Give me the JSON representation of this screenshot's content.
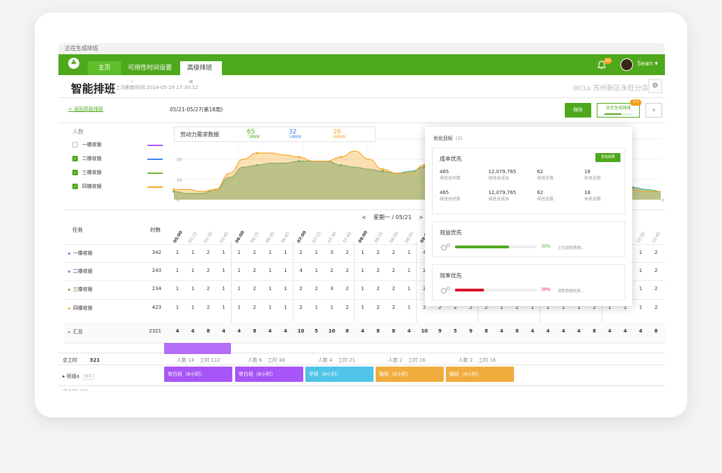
{
  "window": {
    "status_caption": "正在生成排班"
  },
  "nav": {
    "tabs": [
      {
        "label": "主页"
      },
      {
        "label": "可用性时间设置",
        "close": "×"
      },
      {
        "label": "高级排班",
        "close": "×"
      }
    ],
    "notification_count": "99",
    "user_name": "Sean"
  },
  "page": {
    "title": "智能排班",
    "refresh_time": "上次刷新时间:2018-05-29 17:30:12",
    "store_name": "001a 苏州新区永旺分店",
    "back_link": "< 返回高级排班",
    "week_range": "05/21-05/27(第18周)",
    "save_label": "保存",
    "generating_label": "正在生成排班",
    "generating_badge": "1/3"
  },
  "sidebar": {
    "title": "人数",
    "items": [
      {
        "label": "一楼收银",
        "checked": false,
        "color": "#a855f7"
      },
      {
        "label": "二楼收银",
        "checked": true,
        "color": "#3b82f6"
      },
      {
        "label": "三楼收银",
        "checked": true,
        "color": "#6cb52c"
      },
      {
        "label": "四楼收银",
        "checked": true,
        "color": "#f5a623"
      }
    ]
  },
  "chart_header": {
    "label": "劳动力需求数据",
    "metrics": [
      {
        "value": "65",
        "caption": "二楼收银",
        "color": "#4ea81c"
      },
      {
        "value": "32",
        "caption": "三楼收银",
        "color": "#3b82f6"
      },
      {
        "value": "26",
        "caption": "四楼收银",
        "color": "#f5a623"
      }
    ]
  },
  "chart_data": {
    "type": "area",
    "y_ticks": [
      "30",
      "20",
      "10",
      "0"
    ],
    "ylim": [
      0,
      35
    ],
    "end_tick": "0",
    "series": [
      {
        "color": "#4eac8c",
        "values": [
          4,
          3,
          3,
          5,
          11,
          16,
          17,
          18,
          18,
          19,
          19,
          19,
          17,
          16,
          15,
          14,
          13,
          14,
          16,
          18,
          19,
          18,
          17,
          16,
          14,
          13,
          12,
          11,
          10,
          9,
          8,
          7,
          6,
          6,
          5,
          4
        ]
      },
      {
        "color": "#f5a623",
        "values": [
          5,
          5,
          4,
          5,
          13,
          20,
          23,
          23,
          22,
          21,
          19,
          19,
          21,
          24,
          20,
          15,
          13,
          13,
          17,
          22,
          25,
          23,
          20,
          17,
          14,
          12,
          11,
          10,
          9,
          8,
          7,
          6,
          5,
          5,
          4,
          4
        ]
      }
    ]
  },
  "day_nav": {
    "prev": "<",
    "label": "星期一 / 05/21",
    "next": ">"
  },
  "grid": {
    "task_header": "任务",
    "hours_header": "时数",
    "times": [
      "05:00",
      "05:15",
      "05:30",
      "05:45",
      "06:00",
      "06:15",
      "06:30",
      "06:45",
      "07:00",
      "07:15",
      "07:30",
      "07:45",
      "08:00",
      "08:15",
      "08:30",
      "08:45",
      "09:00",
      "09:15",
      "09:30",
      "09:45",
      "10:00",
      "10:15",
      "10:30",
      "10:45",
      "11:00",
      "11:15",
      "11:30",
      "11:45",
      "12:00",
      "12:15",
      "12:30",
      "12:45"
    ],
    "rows": [
      {
        "label": "一楼收银",
        "total": "342",
        "dot": "#a855f7",
        "cells": [
          "1",
          "1",
          "2",
          "1",
          "1",
          "2",
          "1",
          "1",
          "2",
          "1",
          "3",
          "2",
          "1",
          "2",
          "2",
          "1",
          "4",
          "",
          "",
          "",
          "",
          "",
          "",
          "",
          "",
          "",
          "",
          "",
          "",
          "",
          "1",
          "2"
        ]
      },
      {
        "label": "二楼收银",
        "total": "243",
        "dot": "#3b82f6",
        "cells": [
          "1",
          "1",
          "2",
          "1",
          "1",
          "2",
          "1",
          "1",
          "4",
          "1",
          "2",
          "2",
          "1",
          "2",
          "2",
          "1",
          "2",
          "",
          "",
          "",
          "",
          "",
          "",
          "",
          "",
          "",
          "",
          "",
          "",
          "",
          "1",
          "2"
        ]
      },
      {
        "label": "三楼收银",
        "total": "234",
        "dot": "#6cb52c",
        "cells": [
          "1",
          "1",
          "2",
          "1",
          "1",
          "2",
          "1",
          "1",
          "2",
          "2",
          "3",
          "2",
          "1",
          "2",
          "2",
          "1",
          "2",
          "",
          "",
          "",
          "",
          "",
          "",
          "",
          "",
          "",
          "",
          "",
          "",
          "",
          "1",
          "2"
        ]
      },
      {
        "label": "四楼收银",
        "total": "423",
        "dot": "#f5a623",
        "cells": [
          "1",
          "1",
          "2",
          "1",
          "1",
          "2",
          "1",
          "1",
          "2",
          "1",
          "1",
          "2",
          "1",
          "2",
          "2",
          "1",
          "2",
          "2",
          "2",
          "2",
          "2",
          "1",
          "2",
          "1",
          "1",
          "1",
          "1",
          "2",
          "1",
          "1",
          "1",
          "2"
        ]
      }
    ],
    "summary": {
      "label": "汇总",
      "total": "2321",
      "cells": [
        "4",
        "4",
        "8",
        "4",
        "4",
        "8",
        "4",
        "4",
        "10",
        "5",
        "10",
        "8",
        "4",
        "8",
        "8",
        "4",
        "10",
        "9",
        "5",
        "9",
        "8",
        "4",
        "8",
        "4",
        "4",
        "4",
        "4",
        "8",
        "4",
        "4",
        "4",
        "8"
      ]
    }
  },
  "schedule": {
    "total_hours_label": "总工时",
    "total_hours_value": "321",
    "group_label": "班组a",
    "group_badge": "6人",
    "stats": [
      {
        "people": "人数 14",
        "hours": "工时 112"
      },
      {
        "people": "人数 6",
        "hours": "工时 48"
      },
      {
        "people": "人数 4",
        "hours": "工时 21"
      },
      {
        "people": "人数 2",
        "hours": "工时 16"
      },
      {
        "people": "人数 2",
        "hours": "工时 16"
      }
    ],
    "shifts": [
      {
        "label": "常白班（8小时）",
        "color": "#a855f7"
      },
      {
        "label": "常白班（8小时）",
        "color": "#a855f7"
      },
      {
        "label": "早班（8小时）",
        "color": "#4fc3e8"
      },
      {
        "label": "晚班（8小时）",
        "color": "#f0ad3e"
      },
      {
        "label": "晚班（8小时）",
        "color": "#f0ad3e"
      }
    ]
  },
  "opt_panel": {
    "title": "优化目标",
    "count": "(3)",
    "cost": {
      "title": "成本优先",
      "view_label": "查看结果",
      "rows": [
        [
          {
            "value": "465",
            "label": "排班总时数"
          },
          {
            "value": "12,079,765",
            "label": "排班总成本"
          },
          {
            "value": "62",
            "label": "排班总数"
          },
          {
            "value": "18",
            "label": "休息总数"
          }
        ],
        [
          {
            "value": "465",
            "label": "排班总时数"
          },
          {
            "value": "12,079,765",
            "label": "排班总成本"
          },
          {
            "value": "62",
            "label": "排班总数"
          },
          {
            "value": "18",
            "label": "休息总数"
          }
        ]
      ]
    },
    "benefit": {
      "title": "效益优先",
      "progress": 30,
      "pct": "30%",
      "msg": "正在提取数据...",
      "color": "#4ea81c"
    },
    "efficiency": {
      "title": "效率优先",
      "progress": 30,
      "pct": "30%",
      "msg": "提取数据失败...",
      "color": "#d9102a"
    }
  }
}
